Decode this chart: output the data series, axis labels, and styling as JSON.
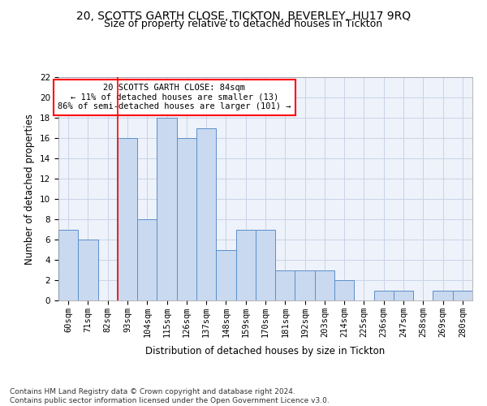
{
  "title_line1": "20, SCOTTS GARTH CLOSE, TICKTON, BEVERLEY, HU17 9RQ",
  "title_line2": "Size of property relative to detached houses in Tickton",
  "xlabel": "Distribution of detached houses by size in Tickton",
  "ylabel": "Number of detached properties",
  "categories": [
    "60sqm",
    "71sqm",
    "82sqm",
    "93sqm",
    "104sqm",
    "115sqm",
    "126sqm",
    "137sqm",
    "148sqm",
    "159sqm",
    "170sqm",
    "181sqm",
    "192sqm",
    "203sqm",
    "214sqm",
    "225sqm",
    "236sqm",
    "247sqm",
    "258sqm",
    "269sqm",
    "280sqm"
  ],
  "values": [
    7,
    6,
    0,
    16,
    8,
    18,
    16,
    17,
    5,
    7,
    7,
    3,
    3,
    3,
    2,
    0,
    1,
    1,
    0,
    1,
    1
  ],
  "bar_color": "#c9d9f0",
  "bar_edgecolor": "#5b8fc9",
  "grid_color": "#c8d4e8",
  "background_color": "#eef2fa",
  "red_line_index": 2,
  "annotation_text": "20 SCOTTS GARTH CLOSE: 84sqm\n← 11% of detached houses are smaller (13)\n86% of semi-detached houses are larger (101) →",
  "annotation_box_color": "white",
  "annotation_box_edgecolor": "red",
  "ylim": [
    0,
    22
  ],
  "yticks": [
    0,
    2,
    4,
    6,
    8,
    10,
    12,
    14,
    16,
    18,
    20,
    22
  ],
  "footer_text": "Contains HM Land Registry data © Crown copyright and database right 2024.\nContains public sector information licensed under the Open Government Licence v3.0.",
  "title_fontsize": 10,
  "subtitle_fontsize": 9,
  "axis_label_fontsize": 8.5,
  "tick_fontsize": 7.5,
  "footer_fontsize": 6.5
}
